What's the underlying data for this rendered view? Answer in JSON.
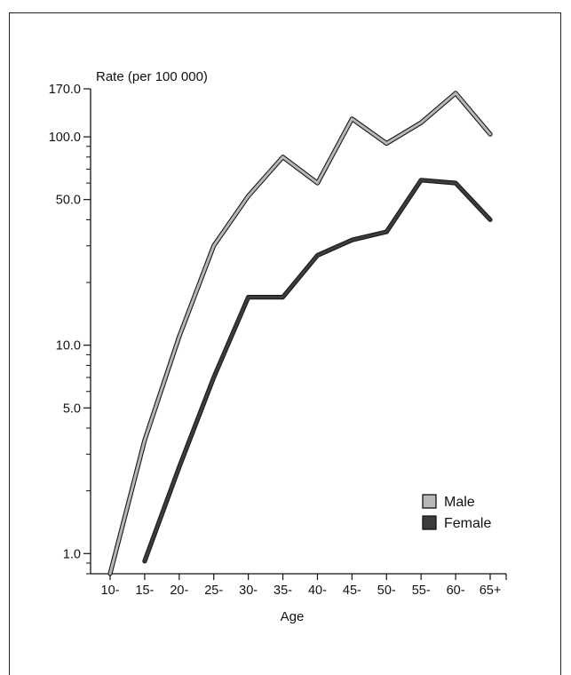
{
  "chart_data": {
    "type": "line",
    "ylabel": "Rate (per 100 000)",
    "xlabel": "Age",
    "y_scale": "log",
    "ylim": [
      0.8,
      170
    ],
    "y_ticks": [
      {
        "value": 1,
        "label": "1.0"
      },
      {
        "value": 5,
        "label": "5.0"
      },
      {
        "value": 10,
        "label": "10.0"
      },
      {
        "value": 50,
        "label": "50.0"
      },
      {
        "value": 100,
        "label": "100.0"
      },
      {
        "value": 170,
        "label": "170.0"
      }
    ],
    "y_minor_ticks": [
      0.8,
      0.9,
      2,
      3,
      4,
      6,
      7,
      8,
      9,
      20,
      30,
      40,
      60,
      70,
      80,
      90
    ],
    "categories": [
      "10-",
      "15-",
      "20-",
      "25-",
      "30-",
      "35-",
      "40-",
      "45-",
      "50-",
      "55-",
      "60-",
      "65+"
    ],
    "series": [
      {
        "name": "Male",
        "color": "#b8b8b8",
        "points": [
          {
            "x": "10-",
            "y": 0.8
          },
          {
            "x": "15-",
            "y": 3.5
          },
          {
            "x": "20-",
            "y": 11
          },
          {
            "x": "25-",
            "y": 30
          },
          {
            "x": "30-",
            "y": 52
          },
          {
            "x": "35-",
            "y": 80
          },
          {
            "x": "40-",
            "y": 60
          },
          {
            "x": "45-",
            "y": 122
          },
          {
            "x": "50-",
            "y": 93
          },
          {
            "x": "55-",
            "y": 117
          },
          {
            "x": "60-",
            "y": 162
          },
          {
            "x": "65+",
            "y": 103
          }
        ]
      },
      {
        "name": "Female",
        "color": "#3c3c3c",
        "points": [
          {
            "x": "15-",
            "y": 0.92
          },
          {
            "x": "20-",
            "y": 2.6
          },
          {
            "x": "25-",
            "y": 7
          },
          {
            "x": "30-",
            "y": 17
          },
          {
            "x": "35-",
            "y": 17
          },
          {
            "x": "40-",
            "y": 27
          },
          {
            "x": "45-",
            "y": 32
          },
          {
            "x": "50-",
            "y": 35
          },
          {
            "x": "55-",
            "y": 62
          },
          {
            "x": "60-",
            "y": 60
          },
          {
            "x": "65+",
            "y": 40
          }
        ]
      }
    ],
    "legend": {
      "placement": "bottom-right",
      "entries": [
        {
          "label": "Male",
          "color": "#b8b8b8"
        },
        {
          "label": "Female",
          "color": "#3c3c3c"
        }
      ]
    },
    "grid": false
  }
}
